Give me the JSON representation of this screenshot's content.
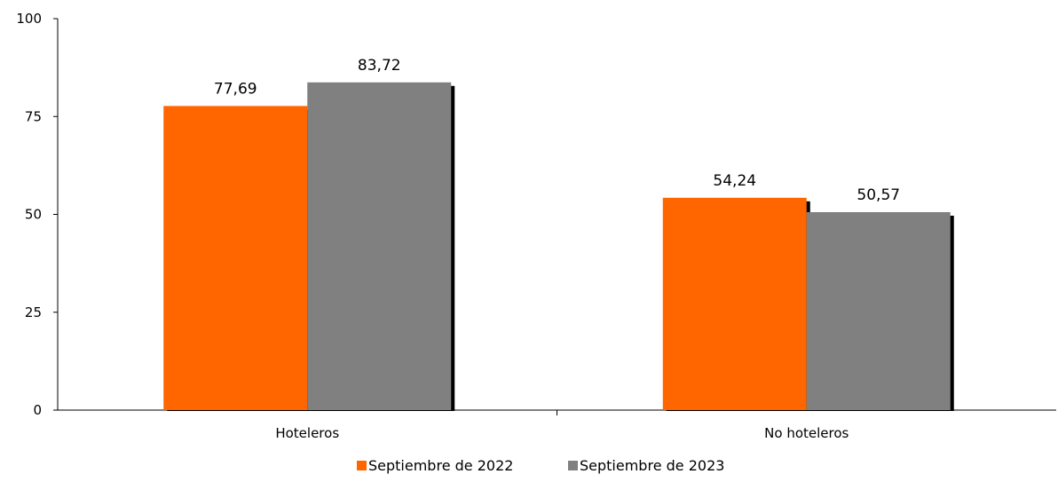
{
  "chart_data": {
    "type": "bar",
    "categories": [
      "Hoteleros",
      "No hoteleros"
    ],
    "series": [
      {
        "name": "Septiembre de 2022",
        "values": [
          77.69,
          54.24
        ],
        "labels": [
          "77,69",
          "54,24"
        ],
        "color": "#FF6600"
      },
      {
        "name": "Septiembre de 2023",
        "values": [
          83.72,
          50.57
        ],
        "labels": [
          "83,72",
          "50,57"
        ],
        "color": "#808080"
      }
    ],
    "title": "",
    "xlabel": "",
    "ylabel": "",
    "ylim": [
      0,
      100
    ],
    "yticks": [
      0,
      25,
      50,
      75,
      100
    ],
    "ytick_labels": [
      "0",
      "25",
      "50",
      "75",
      "100"
    ],
    "grid": false,
    "legend_position": "bottom"
  }
}
